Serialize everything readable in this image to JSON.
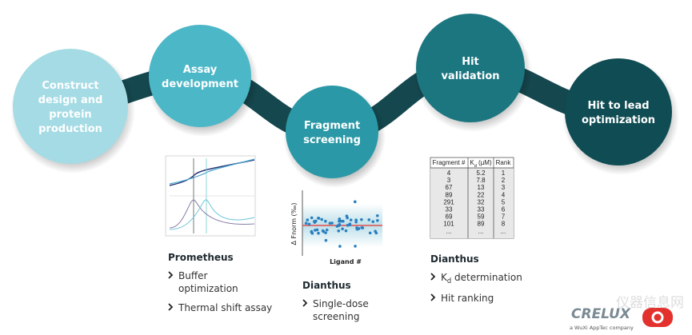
{
  "steps": [
    {
      "label": [
        "Construct",
        "design and",
        "protein",
        "production"
      ]
    },
    {
      "label": [
        "Assay",
        "development"
      ]
    },
    {
      "label": [
        "Fragment",
        "screening"
      ]
    },
    {
      "label": [
        "Hit",
        "validation"
      ]
    },
    {
      "label": [
        "Hit to lead",
        "optimization"
      ]
    }
  ],
  "scatter": {
    "y_label": "Δ Fnorm (‰)",
    "x_label": "Ligand #"
  },
  "table": {
    "headers": [
      "Fragment #",
      {
        "main": "K",
        "sub": "d",
        "rest": " (µM)"
      },
      "Rank"
    ],
    "rows": [
      [
        "4",
        "5.2",
        "1"
      ],
      [
        "3",
        "7.8",
        "2"
      ],
      [
        "67",
        "13",
        "3"
      ],
      [
        "89",
        "22",
        "4"
      ],
      [
        "291",
        "32",
        "5"
      ],
      [
        "33",
        "33",
        "6"
      ],
      [
        "69",
        "59",
        "7"
      ],
      [
        "101",
        "89",
        "8"
      ],
      [
        "...",
        "...",
        "..."
      ]
    ]
  },
  "tools": [
    {
      "name": "Prometheus",
      "items": [
        "Buffer optimization",
        "Thermal shift assay"
      ]
    },
    {
      "name": "Dianthus",
      "items": [
        "Single-dose screening"
      ]
    },
    {
      "name": "Dianthus",
      "items": [
        {
          "main": "K",
          "sub": "d",
          "rest": " determination"
        },
        "Hit ranking"
      ]
    }
  ],
  "logo": {
    "name": "CRELUX",
    "tagline": "a WuXi AppTec company"
  },
  "watermark": "仪器信息网"
}
